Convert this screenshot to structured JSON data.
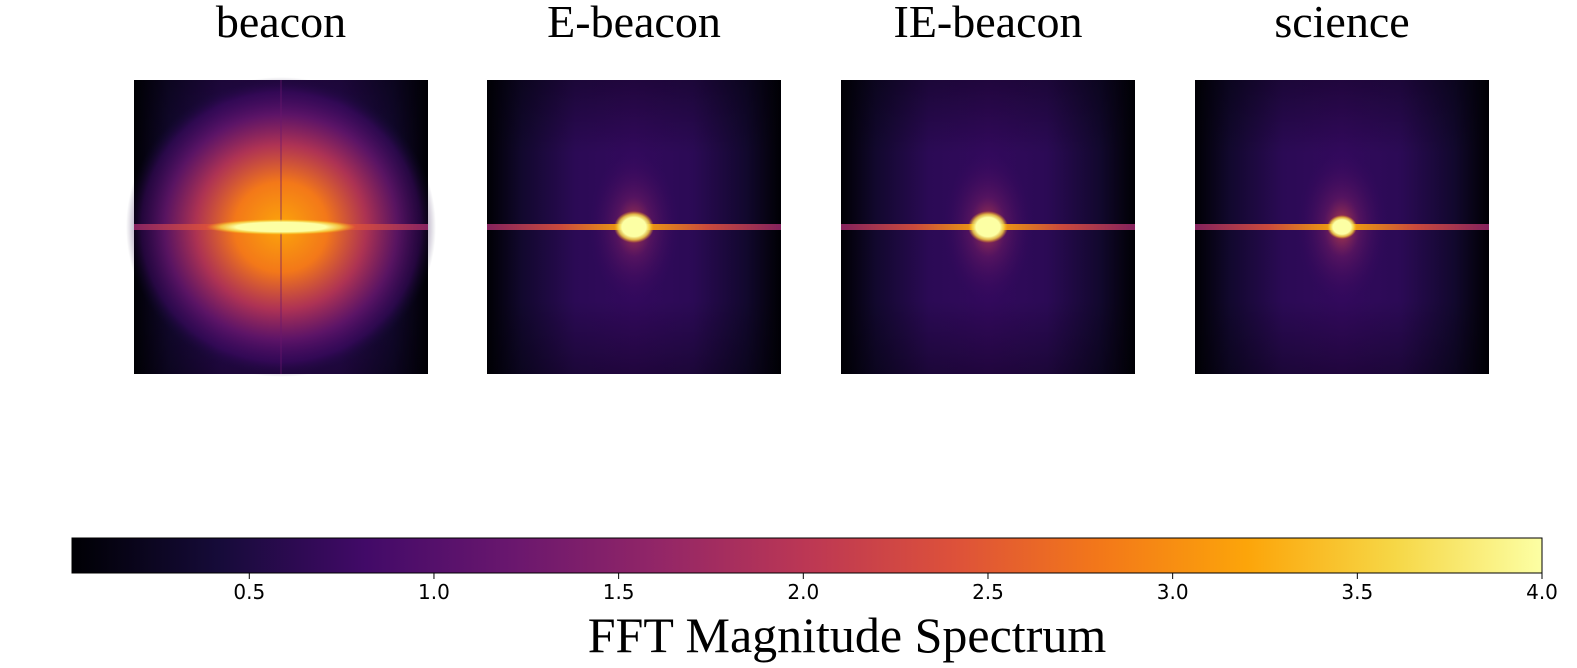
{
  "chart_data": {
    "type": "heatmap",
    "colormap": "inferno",
    "panels": [
      {
        "title": "beacon"
      },
      {
        "title": "E-beacon"
      },
      {
        "title": "IE-beacon"
      },
      {
        "title": "science"
      }
    ],
    "colorbar": {
      "label": "FFT Magnitude Spectrum",
      "lim": [
        0.02,
        4
      ],
      "ticks": [
        0.5,
        {
          "value": 1,
          "label": "1.0"
        },
        1.5,
        {
          "value": 2,
          "label": "2.0"
        },
        2.5,
        {
          "value": 3,
          "label": "3.0"
        },
        3.5,
        {
          "value": 4,
          "label": "4.0"
        }
      ]
    }
  }
}
